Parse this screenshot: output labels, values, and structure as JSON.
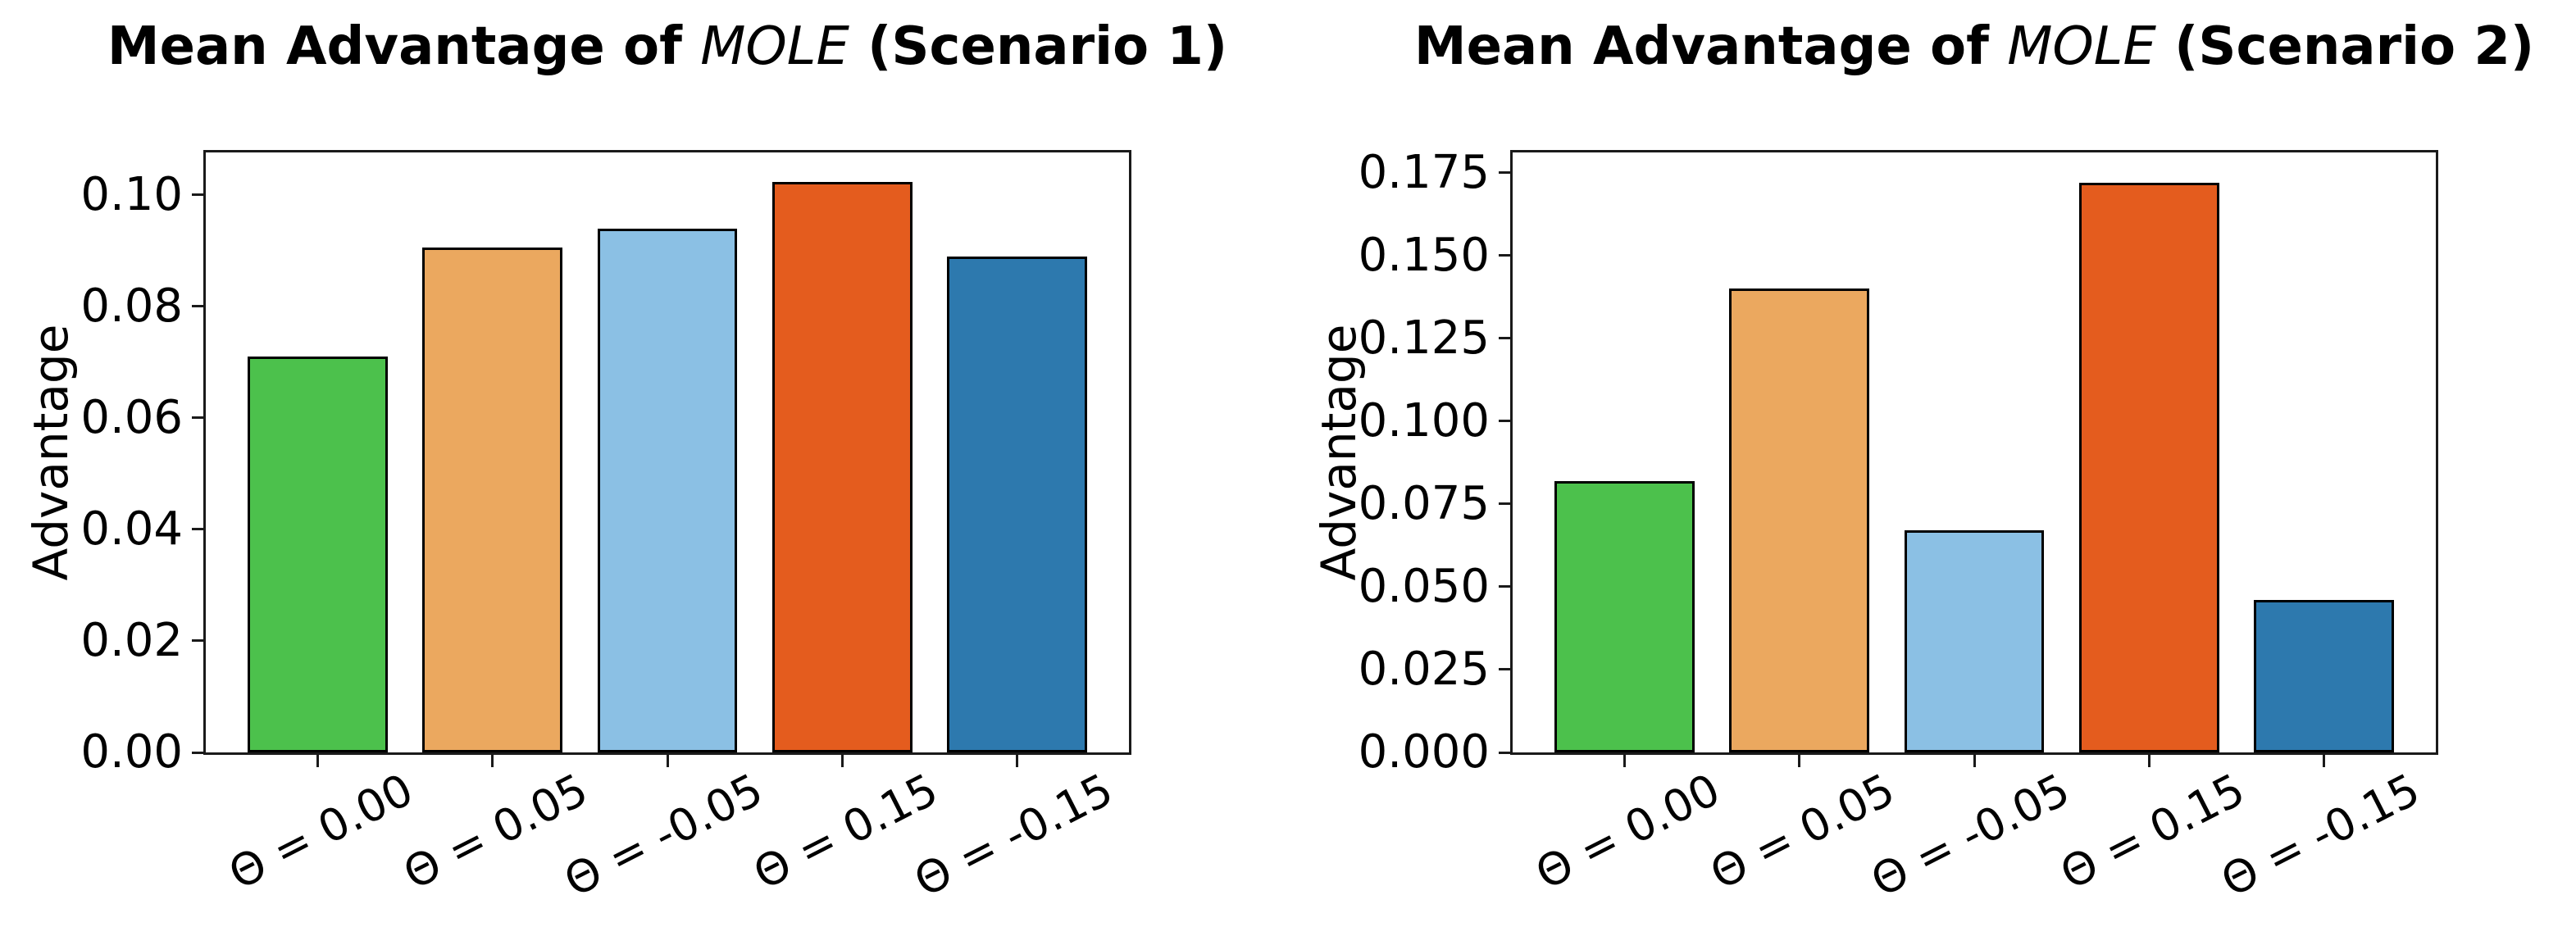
{
  "figure": {
    "background": "#ffffff"
  },
  "chart_data": [
    {
      "type": "bar",
      "title_prefix": "Mean Advantage of ",
      "title_italic": "MOLE",
      "title_suffix": " (Scenario 1)",
      "ylabel": "Advantage",
      "categories": [
        "Θ = 0.00",
        "Θ = 0.05",
        "Θ = -0.05",
        "Θ = 0.15",
        "Θ = -0.15"
      ],
      "values": [
        0.071,
        0.0905,
        0.094,
        0.1023,
        0.089
      ],
      "colors": [
        "#4CC14C",
        "#EBA85F",
        "#8BC0E4",
        "#E45C1E",
        "#2D79AE"
      ],
      "edge_color": "#000000",
      "ylim": [
        0,
        0.1076
      ],
      "yticks": {
        "values": [
          0,
          0.02,
          0.04,
          0.06,
          0.08,
          0.1
        ],
        "labels": [
          "0.00",
          "0.02",
          "0.04",
          "0.06",
          "0.08",
          "0.10"
        ]
      },
      "xtick_rotation_deg": 27,
      "grid": false,
      "legend": false
    },
    {
      "type": "bar",
      "title_prefix": "Mean Advantage of ",
      "title_italic": "MOLE",
      "title_suffix": " (Scenario 2)",
      "ylabel": "Advantage",
      "categories": [
        "Θ = 0.00",
        "Θ = 0.05",
        "Θ = -0.05",
        "Θ = 0.15",
        "Θ = -0.15"
      ],
      "values": [
        0.082,
        0.14,
        0.067,
        0.172,
        0.046
      ],
      "colors": [
        "#4CC14C",
        "#EBA85F",
        "#8BC0E4",
        "#E45C1E",
        "#2D79AE"
      ],
      "edge_color": "#000000",
      "ylim": [
        0,
        0.1811
      ],
      "yticks": {
        "values": [
          0,
          0.025,
          0.05,
          0.075,
          0.1,
          0.125,
          0.15,
          0.175
        ],
        "labels": [
          "0.000",
          "0.025",
          "0.050",
          "0.075",
          "0.100",
          "0.125",
          "0.150",
          "0.175"
        ]
      },
      "xtick_rotation_deg": 27,
      "grid": false,
      "legend": false
    }
  ]
}
